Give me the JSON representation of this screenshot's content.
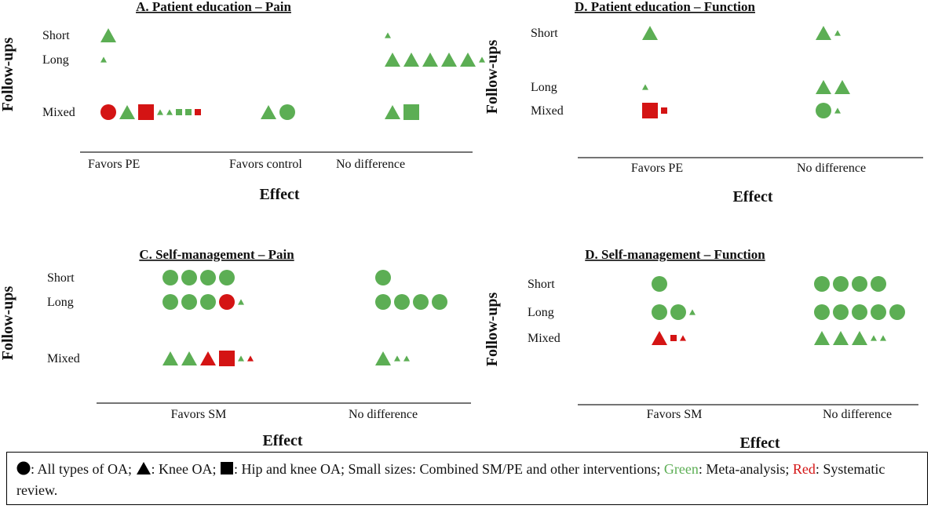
{
  "colors": {
    "green": "#5cae54",
    "red": "#d41414",
    "axis": "#222222",
    "text": "#111111"
  },
  "chart_data": [
    {
      "type": "scatter",
      "title": "A. Patient education – Pain",
      "ylabel": "Follow-ups",
      "xlabel": "Effect",
      "rows": [
        "Short",
        "Long",
        "Mixed"
      ],
      "columns": [
        "Favors PE",
        "Favors control",
        "No difference"
      ],
      "marks": [
        {
          "row": "Short",
          "col": "Favors PE",
          "items": [
            {
              "shape": "triangle",
              "color": "green",
              "size": "large"
            }
          ]
        },
        {
          "row": "Short",
          "col": "No difference",
          "items": [
            {
              "shape": "triangle",
              "color": "green",
              "size": "small"
            }
          ]
        },
        {
          "row": "Long",
          "col": "Favors PE",
          "items": [
            {
              "shape": "triangle",
              "color": "green",
              "size": "small"
            }
          ]
        },
        {
          "row": "Long",
          "col": "No difference",
          "items": [
            {
              "shape": "triangle",
              "color": "green",
              "size": "large"
            },
            {
              "shape": "triangle",
              "color": "green",
              "size": "large"
            },
            {
              "shape": "triangle",
              "color": "green",
              "size": "large"
            },
            {
              "shape": "triangle",
              "color": "green",
              "size": "large"
            },
            {
              "shape": "triangle",
              "color": "green",
              "size": "large"
            },
            {
              "shape": "triangle",
              "color": "green",
              "size": "small"
            }
          ]
        },
        {
          "row": "Mixed",
          "col": "Favors PE",
          "items": [
            {
              "shape": "circle",
              "color": "red",
              "size": "large"
            },
            {
              "shape": "triangle",
              "color": "green",
              "size": "large"
            },
            {
              "shape": "square",
              "color": "red",
              "size": "large"
            },
            {
              "shape": "triangle",
              "color": "green",
              "size": "small"
            },
            {
              "shape": "triangle",
              "color": "green",
              "size": "small"
            },
            {
              "shape": "square",
              "color": "green",
              "size": "small"
            },
            {
              "shape": "square",
              "color": "green",
              "size": "small"
            },
            {
              "shape": "square",
              "color": "red",
              "size": "small"
            }
          ]
        },
        {
          "row": "Mixed",
          "col": "Favors control",
          "items": [
            {
              "shape": "triangle",
              "color": "green",
              "size": "large"
            },
            {
              "shape": "circle",
              "color": "green",
              "size": "large"
            }
          ]
        },
        {
          "row": "Mixed",
          "col": "No difference",
          "items": [
            {
              "shape": "triangle",
              "color": "green",
              "size": "large"
            },
            {
              "shape": "square",
              "color": "green",
              "size": "large"
            }
          ]
        }
      ]
    },
    {
      "type": "scatter",
      "title": "D. Patient education – Function",
      "ylabel": "Follow-ups",
      "xlabel": "Effect",
      "rows": [
        "Short",
        "Long",
        "Mixed"
      ],
      "columns": [
        "Favors PE",
        "No difference"
      ],
      "marks": [
        {
          "row": "Short",
          "col": "Favors PE",
          "items": [
            {
              "shape": "triangle",
              "color": "green",
              "size": "large"
            }
          ]
        },
        {
          "row": "Short",
          "col": "No difference",
          "items": [
            {
              "shape": "triangle",
              "color": "green",
              "size": "large"
            },
            {
              "shape": "triangle",
              "color": "green",
              "size": "small"
            }
          ]
        },
        {
          "row": "Long",
          "col": "Favors PE",
          "items": [
            {
              "shape": "triangle",
              "color": "green",
              "size": "small"
            }
          ]
        },
        {
          "row": "Long",
          "col": "No difference",
          "items": [
            {
              "shape": "triangle",
              "color": "green",
              "size": "large"
            },
            {
              "shape": "triangle",
              "color": "green",
              "size": "large"
            }
          ]
        },
        {
          "row": "Mixed",
          "col": "Favors PE",
          "items": [
            {
              "shape": "square",
              "color": "red",
              "size": "large"
            },
            {
              "shape": "square",
              "color": "red",
              "size": "small"
            }
          ]
        },
        {
          "row": "Mixed",
          "col": "No difference",
          "items": [
            {
              "shape": "circle",
              "color": "green",
              "size": "large"
            },
            {
              "shape": "triangle",
              "color": "green",
              "size": "small"
            }
          ]
        }
      ]
    },
    {
      "type": "scatter",
      "title": "C. Self-management – Pain",
      "ylabel": "Follow-ups",
      "xlabel": "Effect",
      "rows": [
        "Short",
        "Long",
        "Mixed"
      ],
      "columns": [
        "Favors SM",
        "No difference"
      ],
      "marks": [
        {
          "row": "Short",
          "col": "Favors SM",
          "items": [
            {
              "shape": "circle",
              "color": "green",
              "size": "large"
            },
            {
              "shape": "circle",
              "color": "green",
              "size": "large"
            },
            {
              "shape": "circle",
              "color": "green",
              "size": "large"
            },
            {
              "shape": "circle",
              "color": "green",
              "size": "large"
            }
          ]
        },
        {
          "row": "Short",
          "col": "No difference",
          "items": [
            {
              "shape": "circle",
              "color": "green",
              "size": "large"
            }
          ]
        },
        {
          "row": "Long",
          "col": "Favors SM",
          "items": [
            {
              "shape": "circle",
              "color": "green",
              "size": "large"
            },
            {
              "shape": "circle",
              "color": "green",
              "size": "large"
            },
            {
              "shape": "circle",
              "color": "green",
              "size": "large"
            },
            {
              "shape": "circle",
              "color": "red",
              "size": "large"
            },
            {
              "shape": "triangle",
              "color": "green",
              "size": "small"
            }
          ]
        },
        {
          "row": "Long",
          "col": "No difference",
          "items": [
            {
              "shape": "circle",
              "color": "green",
              "size": "large"
            },
            {
              "shape": "circle",
              "color": "green",
              "size": "large"
            },
            {
              "shape": "circle",
              "color": "green",
              "size": "large"
            },
            {
              "shape": "circle",
              "color": "green",
              "size": "large"
            }
          ]
        },
        {
          "row": "Mixed",
          "col": "Favors SM",
          "items": [
            {
              "shape": "triangle",
              "color": "green",
              "size": "large"
            },
            {
              "shape": "triangle",
              "color": "green",
              "size": "large"
            },
            {
              "shape": "triangle",
              "color": "red",
              "size": "large"
            },
            {
              "shape": "square",
              "color": "red",
              "size": "large"
            },
            {
              "shape": "triangle",
              "color": "green",
              "size": "small"
            },
            {
              "shape": "triangle",
              "color": "red",
              "size": "small"
            }
          ]
        },
        {
          "row": "Mixed",
          "col": "No difference",
          "items": [
            {
              "shape": "triangle",
              "color": "green",
              "size": "large"
            },
            {
              "shape": "triangle",
              "color": "green",
              "size": "small"
            },
            {
              "shape": "triangle",
              "color": "green",
              "size": "small"
            }
          ]
        }
      ]
    },
    {
      "type": "scatter",
      "title": "D. Self-management – Function",
      "ylabel": "Follow-ups",
      "xlabel": "Effect",
      "rows": [
        "Short",
        "Long",
        "Mixed"
      ],
      "columns": [
        "Favors SM",
        "No difference"
      ],
      "marks": [
        {
          "row": "Short",
          "col": "Favors SM",
          "items": [
            {
              "shape": "circle",
              "color": "green",
              "size": "large"
            }
          ]
        },
        {
          "row": "Short",
          "col": "No difference",
          "items": [
            {
              "shape": "circle",
              "color": "green",
              "size": "large"
            },
            {
              "shape": "circle",
              "color": "green",
              "size": "large"
            },
            {
              "shape": "circle",
              "color": "green",
              "size": "large"
            },
            {
              "shape": "circle",
              "color": "green",
              "size": "large"
            }
          ]
        },
        {
          "row": "Long",
          "col": "Favors SM",
          "items": [
            {
              "shape": "circle",
              "color": "green",
              "size": "large"
            },
            {
              "shape": "circle",
              "color": "green",
              "size": "large"
            },
            {
              "shape": "triangle",
              "color": "green",
              "size": "small"
            }
          ]
        },
        {
          "row": "Long",
          "col": "No difference",
          "items": [
            {
              "shape": "circle",
              "color": "green",
              "size": "large"
            },
            {
              "shape": "circle",
              "color": "green",
              "size": "large"
            },
            {
              "shape": "circle",
              "color": "green",
              "size": "large"
            },
            {
              "shape": "circle",
              "color": "green",
              "size": "large"
            },
            {
              "shape": "circle",
              "color": "green",
              "size": "large"
            }
          ]
        },
        {
          "row": "Mixed",
          "col": "Favors SM",
          "items": [
            {
              "shape": "triangle",
              "color": "red",
              "size": "large"
            },
            {
              "shape": "square",
              "color": "red",
              "size": "small"
            },
            {
              "shape": "triangle",
              "color": "red",
              "size": "small"
            }
          ]
        },
        {
          "row": "Mixed",
          "col": "No difference",
          "items": [
            {
              "shape": "triangle",
              "color": "green",
              "size": "large"
            },
            {
              "shape": "triangle",
              "color": "green",
              "size": "large"
            },
            {
              "shape": "triangle",
              "color": "green",
              "size": "large"
            },
            {
              "shape": "triangle",
              "color": "green",
              "size": "small"
            },
            {
              "shape": "triangle",
              "color": "green",
              "size": "small"
            }
          ]
        }
      ]
    }
  ],
  "legend": {
    "circle_text": ": All types of OA; ",
    "triangle_text": ": Knee OA; ",
    "square_text": ": Hip and knee OA; Small sizes: Combined SM/PE and other interventions; ",
    "green_label": "Green",
    "green_text": ": Meta-analysis; ",
    "red_label": "Red",
    "red_text": ": Systematic review."
  }
}
